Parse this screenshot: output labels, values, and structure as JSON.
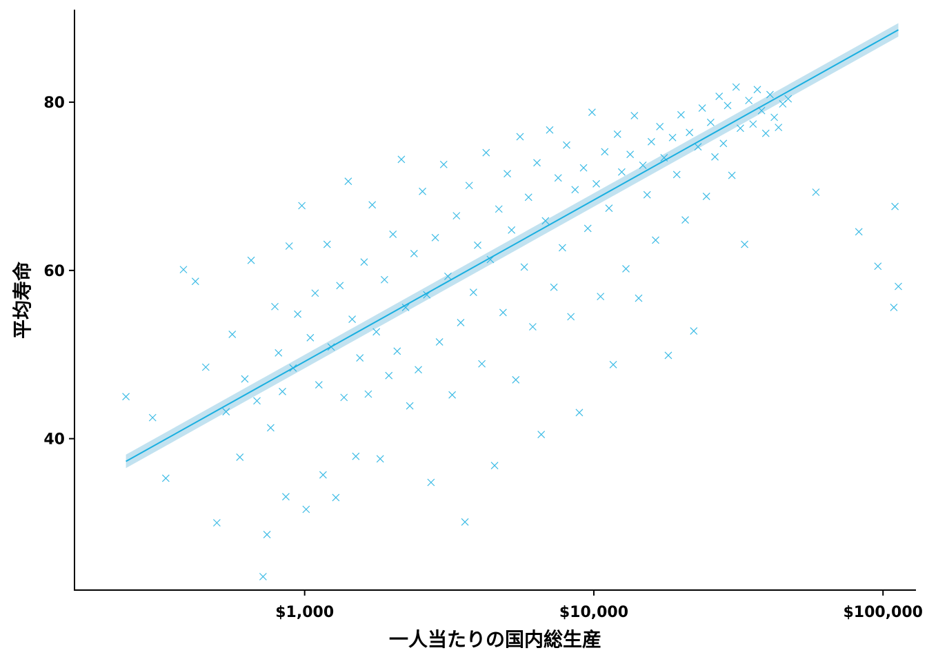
{
  "chart_data": {
    "type": "scatter",
    "title": "",
    "xlabel": "一人当たりの国内総生産",
    "ylabel": "平均寿命",
    "x_scale": "log10",
    "xlim": [
      160,
      130000
    ],
    "ylim": [
      22,
      91
    ],
    "x_ticks": [
      1000,
      10000,
      100000
    ],
    "x_tick_labels": [
      "$1,000",
      "$10,000",
      "$100,000"
    ],
    "y_ticks": [
      40,
      60,
      80
    ],
    "y_tick_labels": [
      "40",
      "60",
      "80"
    ],
    "grid": false,
    "legend": "none",
    "marker": "x",
    "colors": {
      "points": "#1aafe0",
      "fit_line": "#1aafe0",
      "confidence_band": "#a8d6ea"
    },
    "trend_line": {
      "type": "linear fit on log10(x)",
      "x": [
        241,
        113000
      ],
      "y": [
        37.3,
        88.6
      ],
      "band_halfwidth": 0.8
    },
    "series": [
      {
        "points": [
          [
            241,
            45.0
          ],
          [
            298,
            42.5
          ],
          [
            331,
            35.3
          ],
          [
            381,
            60.1
          ],
          [
            419,
            58.7
          ],
          [
            455,
            48.5
          ],
          [
            497,
            30.0
          ],
          [
            535,
            43.2
          ],
          [
            562,
            52.4
          ],
          [
            597,
            37.8
          ],
          [
            621,
            47.1
          ],
          [
            653,
            61.2
          ],
          [
            684,
            44.5
          ],
          [
            718,
            23.6
          ],
          [
            741,
            28.6
          ],
          [
            763,
            41.3
          ],
          [
            789,
            55.7
          ],
          [
            812,
            50.2
          ],
          [
            838,
            45.6
          ],
          [
            861,
            33.1
          ],
          [
            884,
            62.9
          ],
          [
            912,
            48.4
          ],
          [
            946,
            54.8
          ],
          [
            978,
            67.7
          ],
          [
            1012,
            31.6
          ],
          [
            1046,
            52.0
          ],
          [
            1087,
            57.3
          ],
          [
            1120,
            46.4
          ],
          [
            1158,
            35.7
          ],
          [
            1196,
            63.1
          ],
          [
            1235,
            50.9
          ],
          [
            1282,
            33.0
          ],
          [
            1324,
            58.2
          ],
          [
            1368,
            44.9
          ],
          [
            1415,
            70.6
          ],
          [
            1460,
            54.2
          ],
          [
            1503,
            37.9
          ],
          [
            1552,
            49.6
          ],
          [
            1606,
            61.0
          ],
          [
            1660,
            45.3
          ],
          [
            1713,
            67.8
          ],
          [
            1770,
            52.7
          ],
          [
            1825,
            37.6
          ],
          [
            1888,
            58.9
          ],
          [
            1955,
            47.5
          ],
          [
            2020,
            64.3
          ],
          [
            2089,
            50.4
          ],
          [
            2160,
            73.2
          ],
          [
            2235,
            55.6
          ],
          [
            2310,
            43.9
          ],
          [
            2390,
            62.0
          ],
          [
            2473,
            48.2
          ],
          [
            2556,
            69.4
          ],
          [
            2645,
            57.1
          ],
          [
            2735,
            34.8
          ],
          [
            2830,
            63.9
          ],
          [
            2926,
            51.5
          ],
          [
            3026,
            72.6
          ],
          [
            3130,
            59.3
          ],
          [
            3238,
            45.2
          ],
          [
            3350,
            66.5
          ],
          [
            3465,
            53.8
          ],
          [
            3584,
            30.1
          ],
          [
            3706,
            70.1
          ],
          [
            3834,
            57.4
          ],
          [
            3965,
            63.0
          ],
          [
            4100,
            48.9
          ],
          [
            4242,
            74.0
          ],
          [
            4388,
            61.3
          ],
          [
            4538,
            36.8
          ],
          [
            4694,
            67.3
          ],
          [
            4855,
            55.0
          ],
          [
            5022,
            71.5
          ],
          [
            5194,
            64.8
          ],
          [
            5372,
            47.0
          ],
          [
            5557,
            75.9
          ],
          [
            5748,
            60.4
          ],
          [
            5945,
            68.7
          ],
          [
            6148,
            53.3
          ],
          [
            6359,
            72.8
          ],
          [
            6578,
            40.5
          ],
          [
            6804,
            65.9
          ],
          [
            7036,
            76.7
          ],
          [
            7278,
            58.0
          ],
          [
            7528,
            71.0
          ],
          [
            7786,
            62.7
          ],
          [
            8052,
            74.9
          ],
          [
            8329,
            54.5
          ],
          [
            8614,
            69.6
          ],
          [
            8910,
            43.1
          ],
          [
            9215,
            72.2
          ],
          [
            9532,
            65.0
          ],
          [
            9859,
            78.8
          ],
          [
            10198,
            70.3
          ],
          [
            10548,
            56.9
          ],
          [
            10909,
            74.1
          ],
          [
            11283,
            67.4
          ],
          [
            11671,
            48.8
          ],
          [
            12071,
            76.2
          ],
          [
            12486,
            71.7
          ],
          [
            12913,
            60.2
          ],
          [
            13356,
            73.8
          ],
          [
            13815,
            78.4
          ],
          [
            14290,
            56.7
          ],
          [
            14779,
            72.5
          ],
          [
            15287,
            69.0
          ],
          [
            15811,
            75.3
          ],
          [
            16354,
            63.6
          ],
          [
            16915,
            77.1
          ],
          [
            17496,
            73.4
          ],
          [
            18096,
            49.9
          ],
          [
            18716,
            75.8
          ],
          [
            19357,
            71.4
          ],
          [
            20023,
            78.5
          ],
          [
            20712,
            66.0
          ],
          [
            21420,
            76.4
          ],
          [
            22156,
            52.8
          ],
          [
            22917,
            74.7
          ],
          [
            23702,
            79.3
          ],
          [
            24513,
            68.8
          ],
          [
            25355,
            77.6
          ],
          [
            26228,
            73.5
          ],
          [
            27129,
            80.7
          ],
          [
            28058,
            75.1
          ],
          [
            29022,
            79.6
          ],
          [
            30018,
            71.3
          ],
          [
            31048,
            81.8
          ],
          [
            32114,
            76.9
          ],
          [
            33215,
            63.1
          ],
          [
            34355,
            80.2
          ],
          [
            35535,
            77.4
          ],
          [
            36757,
            81.5
          ],
          [
            38017,
            79.0
          ],
          [
            39322,
            76.3
          ],
          [
            40675,
            80.9
          ],
          [
            42073,
            78.2
          ],
          [
            43515,
            77.0
          ],
          [
            45010,
            79.8
          ],
          [
            47000,
            80.4
          ],
          [
            58600,
            69.3
          ],
          [
            82500,
            64.6
          ],
          [
            96000,
            60.5
          ],
          [
            109000,
            55.6
          ],
          [
            110000,
            67.6
          ],
          [
            113000,
            58.1
          ]
        ]
      }
    ]
  }
}
